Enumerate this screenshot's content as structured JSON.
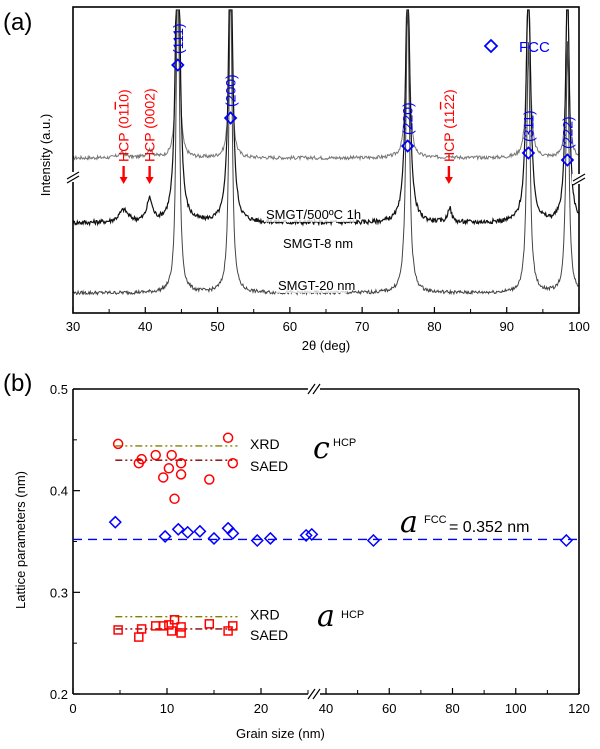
{
  "chart_data": [
    {
      "id": "a",
      "panel_label": "(a)",
      "type": "line",
      "xlabel": "2θ (deg)",
      "ylabel": "Intensity (a.u.)",
      "xlim": [
        30,
        100
      ],
      "xticks": [
        30,
        40,
        50,
        60,
        70,
        80,
        90,
        100
      ],
      "y_axis_break": true,
      "legend": {
        "label": "FCC",
        "marker": "diamond",
        "color": "#0000ff",
        "position": "top-right"
      },
      "series": [
        {
          "name": "SMGT/500°C 1h",
          "label": "SMGT/500ºC 1h",
          "color": "#777777",
          "baseline": 0.62,
          "peaks": [
            {
              "x": 36.8,
              "h": 0.02,
              "w": 1.2
            },
            {
              "x": 40.6,
              "h": 0.03,
              "w": 1.0
            },
            {
              "x": 44.5,
              "h": 1.6,
              "w": 0.35
            },
            {
              "x": 51.8,
              "h": 1.0,
              "w": 0.4
            },
            {
              "x": 76.3,
              "h": 1.0,
              "w": 0.45
            },
            {
              "x": 82.1,
              "h": 0.01,
              "w": 0.8
            },
            {
              "x": 93.0,
              "h": 1.0,
              "w": 0.45
            },
            {
              "x": 98.4,
              "h": 1.0,
              "w": 0.35
            }
          ]
        },
        {
          "name": "SMGT-8 nm",
          "label": "SMGT-8 nm",
          "color": "#111111",
          "baseline": 0.36,
          "peaks": [
            {
              "x": 37.0,
              "h": 0.05,
              "w": 1.5
            },
            {
              "x": 40.6,
              "h": 0.09,
              "w": 0.9
            },
            {
              "x": 44.5,
              "h": 1.6,
              "w": 0.6
            },
            {
              "x": 51.8,
              "h": 1.2,
              "w": 0.65
            },
            {
              "x": 76.3,
              "h": 1.0,
              "w": 0.7
            },
            {
              "x": 82.1,
              "h": 0.06,
              "w": 0.6
            },
            {
              "x": 93.0,
              "h": 1.0,
              "w": 0.7
            },
            {
              "x": 98.4,
              "h": 1.0,
              "w": 0.6
            }
          ]
        },
        {
          "name": "SMGT-20 nm",
          "label": "SMGT-20 nm",
          "color": "#444444",
          "baseline": 0.08,
          "peaks": [
            {
              "x": 44.5,
              "h": 1.6,
              "w": 0.45
            },
            {
              "x": 51.8,
              "h": 1.3,
              "w": 0.5
            },
            {
              "x": 76.3,
              "h": 1.2,
              "w": 0.55
            },
            {
              "x": 93.0,
              "h": 1.0,
              "w": 0.55
            },
            {
              "x": 98.4,
              "h": 1.0,
              "w": 0.5
            }
          ]
        }
      ],
      "fcc_annotations": [
        {
          "x": 44.5,
          "label": "(111)"
        },
        {
          "x": 51.8,
          "label": "(200)"
        },
        {
          "x": 76.3,
          "label": "(220)"
        },
        {
          "x": 93.0,
          "label": "(311)"
        },
        {
          "x": 98.4,
          "label": "(222)"
        }
      ],
      "hcp_annotations": [
        {
          "x": 37.0,
          "label": "HCP (01̅0̅1̅0)",
          "text": "HCP (01",
          "bar": "1",
          "tail": "0)"
        },
        {
          "x": 40.6,
          "label": "HCP (0002)",
          "text": "HCP (0002)",
          "bar": "",
          "tail": ""
        },
        {
          "x": 82.0,
          "label": "HCP (1122)",
          "text": "HCP (11",
          "bar": "2",
          "tail": "2)"
        }
      ],
      "annotation_colors": {
        "fcc": "#0000ff",
        "hcp": "#ff0000"
      }
    },
    {
      "id": "b",
      "panel_label": "(b)",
      "type": "scatter",
      "xlabel": "Grain size (nm)",
      "ylabel": "Lattice parameters (nm)",
      "ylim": [
        0.2,
        0.5
      ],
      "yticks": [
        "0.2",
        "0.3",
        "0.4",
        "0.5"
      ],
      "x_axis_break": [
        26,
        36
      ],
      "xticks_left": [
        0,
        10,
        20
      ],
      "xticks_right": [
        40,
        60,
        80,
        100,
        120
      ],
      "xlim": [
        0,
        120
      ],
      "series": [
        {
          "name": "c HCP",
          "marker": "circle",
          "color": "#ff0000",
          "points": [
            [
              4.8,
              0.446
            ],
            [
              7.0,
              0.427
            ],
            [
              7.3,
              0.431
            ],
            [
              8.8,
              0.435
            ],
            [
              9.6,
              0.413
            ],
            [
              10.2,
              0.422
            ],
            [
              10.5,
              0.435
            ],
            [
              10.8,
              0.392
            ],
            [
              11.5,
              0.416
            ],
            [
              11.5,
              0.427
            ],
            [
              14.5,
              0.411
            ],
            [
              16.5,
              0.452
            ],
            [
              17.0,
              0.427
            ]
          ]
        },
        {
          "name": "a FCC",
          "marker": "diamond",
          "color": "#0000ff",
          "points": [
            [
              4.5,
              0.369
            ],
            [
              9.8,
              0.355
            ],
            [
              11.2,
              0.362
            ],
            [
              12.2,
              0.359
            ],
            [
              13.5,
              0.36
            ],
            [
              15.0,
              0.353
            ],
            [
              16.5,
              0.363
            ],
            [
              17.0,
              0.358
            ],
            [
              19.6,
              0.351
            ],
            [
              21.0,
              0.353
            ],
            [
              24.8,
              0.356
            ],
            [
              25.4,
              0.357
            ],
            [
              55.0,
              0.351
            ],
            [
              116.0,
              0.351
            ]
          ]
        },
        {
          "name": "a HCP",
          "marker": "square",
          "color": "#ff0000",
          "points": [
            [
              4.8,
              0.263
            ],
            [
              7.0,
              0.256
            ],
            [
              7.3,
              0.264
            ],
            [
              8.8,
              0.267
            ],
            [
              9.6,
              0.267
            ],
            [
              10.2,
              0.268
            ],
            [
              10.8,
              0.273
            ],
            [
              10.5,
              0.262
            ],
            [
              11.5,
              0.266
            ],
            [
              11.5,
              0.26
            ],
            [
              14.5,
              0.269
            ],
            [
              16.5,
              0.262
            ],
            [
              17.0,
              0.267
            ]
          ]
        }
      ],
      "reference_lines": [
        {
          "name": "c HCP XRD",
          "label": "XRD",
          "y": 0.444,
          "x": [
            4.5,
            17.5
          ],
          "color": "#808000",
          "style": "dash-dot-dot"
        },
        {
          "name": "c HCP SAED",
          "label": "SAED",
          "y": 0.43,
          "x": [
            4.5,
            17.5
          ],
          "color": "#800000",
          "style": "dash-dot-dot"
        },
        {
          "name": "a HCP XRD",
          "label": "XRD",
          "y": 0.276,
          "x": [
            4.5,
            17.5
          ],
          "color": "#808000",
          "style": "dash-dot-dot"
        },
        {
          "name": "a HCP SAED",
          "label": "SAED",
          "y": 0.264,
          "x": [
            4.5,
            17.5
          ],
          "color": "#800000",
          "style": "dash-dot-dot"
        },
        {
          "name": "a FCC",
          "label": "",
          "y": 0.352,
          "x": [
            0,
            120
          ],
          "color": "#0000ff",
          "style": "dash"
        }
      ],
      "annotations": [
        {
          "symbol": "c",
          "sup": "HCP",
          "text": "c HCP"
        },
        {
          "symbol": "a",
          "sup": "FCC",
          "text": "a FCC = 0.352 nm",
          "value": "= 0.352 nm"
        },
        {
          "symbol": "a",
          "sup": "HCP",
          "text": "a HCP"
        }
      ]
    }
  ]
}
